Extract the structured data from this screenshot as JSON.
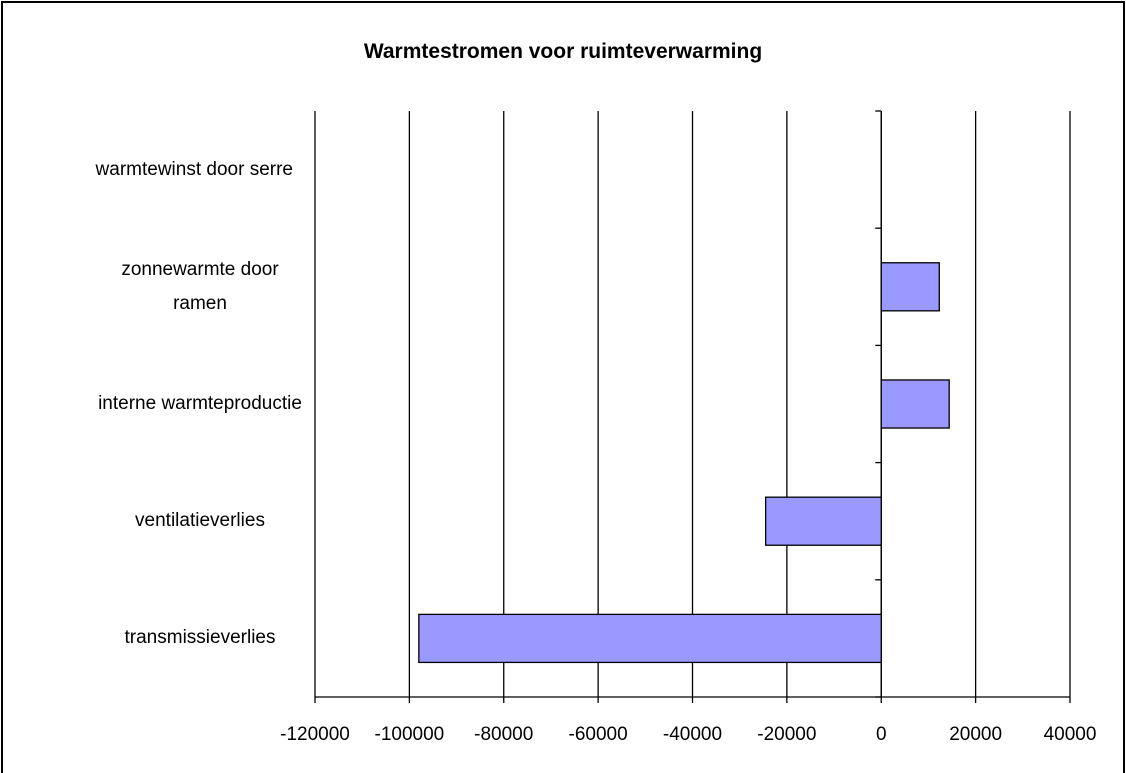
{
  "chart_data": {
    "type": "barh",
    "title": "Warmtestromen voor ruimteverwarming",
    "categories": [
      "transmissieverlies",
      "ventilatieverlies",
      "interne warmteproductie",
      "zonnewarmte door ramen",
      "warmtewinst door serre"
    ],
    "values": [
      -98000,
      -24500,
      14400,
      12300,
      0
    ],
    "color": "#9999ff",
    "xlim": [
      -120000,
      40000
    ],
    "xticks": [
      -120000,
      -100000,
      -80000,
      -60000,
      -40000,
      -20000,
      0,
      20000,
      40000
    ],
    "grid": true
  }
}
